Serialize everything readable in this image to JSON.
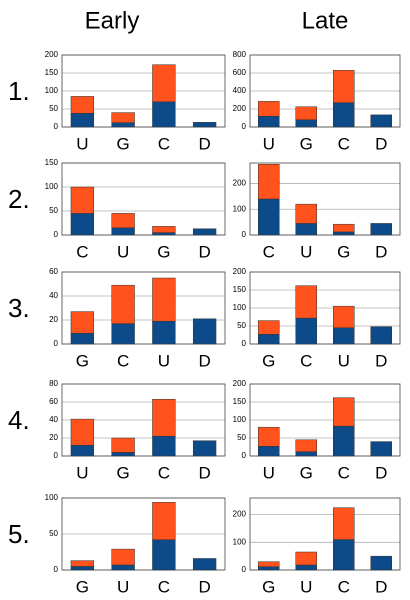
{
  "columns": [
    "Early",
    "Late"
  ],
  "rows": [
    "1.",
    "2.",
    "3.",
    "4.",
    "5."
  ],
  "chart_data": [
    {
      "type": "bar",
      "stacked": true,
      "categories": [
        "U",
        "G",
        "C",
        "D"
      ],
      "ylim": [
        0,
        200
      ],
      "yticks": [
        0,
        50,
        100,
        150,
        200
      ],
      "grid": true,
      "series": [
        {
          "color": "#0d4a8a",
          "values": [
            38,
            12,
            70,
            13
          ]
        },
        {
          "color": "#ff521c",
          "values": [
            47,
            28,
            103,
            0
          ]
        }
      ]
    },
    {
      "type": "bar",
      "stacked": true,
      "categories": [
        "U",
        "G",
        "C",
        "D"
      ],
      "ylim": [
        0,
        800
      ],
      "yticks": [
        0,
        200,
        400,
        600,
        800
      ],
      "grid": true,
      "series": [
        {
          "color": "#0d4a8a",
          "values": [
            120,
            80,
            270,
            135
          ]
        },
        {
          "color": "#ff521c",
          "values": [
            165,
            145,
            360,
            0
          ]
        }
      ]
    },
    {
      "type": "bar",
      "stacked": true,
      "categories": [
        "C",
        "U",
        "G",
        "D"
      ],
      "ylim": [
        0,
        150
      ],
      "yticks": [
        0,
        50,
        100,
        150
      ],
      "grid": true,
      "series": [
        {
          "color": "#0d4a8a",
          "values": [
            45,
            15,
            5,
            13
          ]
        },
        {
          "color": "#ff521c",
          "values": [
            55,
            30,
            13,
            0
          ]
        }
      ]
    },
    {
      "type": "bar",
      "stacked": true,
      "categories": [
        "C",
        "U",
        "G",
        "D"
      ],
      "ylim": [
        0,
        280
      ],
      "yticks": [
        0,
        100,
        200
      ],
      "grid": true,
      "series": [
        {
          "color": "#0d4a8a",
          "values": [
            140,
            45,
            12,
            45
          ]
        },
        {
          "color": "#ff521c",
          "values": [
            135,
            75,
            30,
            0
          ]
        }
      ]
    },
    {
      "type": "bar",
      "stacked": true,
      "categories": [
        "G",
        "C",
        "U",
        "D"
      ],
      "ylim": [
        0,
        60
      ],
      "yticks": [
        0,
        20,
        40,
        60
      ],
      "grid": true,
      "series": [
        {
          "color": "#0d4a8a",
          "values": [
            9,
            17,
            19,
            21
          ]
        },
        {
          "color": "#ff521c",
          "values": [
            18,
            32,
            36,
            0
          ]
        }
      ]
    },
    {
      "type": "bar",
      "stacked": true,
      "categories": [
        "G",
        "C",
        "U",
        "D"
      ],
      "ylim": [
        0,
        200
      ],
      "yticks": [
        0,
        50,
        100,
        150,
        200
      ],
      "grid": true,
      "series": [
        {
          "color": "#0d4a8a",
          "values": [
            27,
            72,
            45,
            48
          ]
        },
        {
          "color": "#ff521c",
          "values": [
            38,
            90,
            60,
            0
          ]
        }
      ]
    },
    {
      "type": "bar",
      "stacked": true,
      "categories": [
        "U",
        "G",
        "C",
        "D"
      ],
      "ylim": [
        0,
        80
      ],
      "yticks": [
        0,
        20,
        40,
        60,
        80
      ],
      "grid": true,
      "series": [
        {
          "color": "#0d4a8a",
          "values": [
            12,
            4,
            22,
            17
          ]
        },
        {
          "color": "#ff521c",
          "values": [
            29,
            16,
            41,
            0
          ]
        }
      ]
    },
    {
      "type": "bar",
      "stacked": true,
      "categories": [
        "U",
        "G",
        "C",
        "D"
      ],
      "ylim": [
        0,
        200
      ],
      "yticks": [
        0,
        50,
        100,
        150,
        200
      ],
      "grid": true,
      "series": [
        {
          "color": "#0d4a8a",
          "values": [
            27,
            12,
            83,
            40
          ]
        },
        {
          "color": "#ff521c",
          "values": [
            53,
            33,
            79,
            0
          ]
        }
      ]
    },
    {
      "type": "bar",
      "stacked": true,
      "categories": [
        "G",
        "U",
        "C",
        "D"
      ],
      "ylim": [
        0,
        100
      ],
      "yticks": [
        0,
        50,
        100
      ],
      "grid": true,
      "series": [
        {
          "color": "#0d4a8a",
          "values": [
            5,
            7,
            42,
            16
          ]
        },
        {
          "color": "#ff521c",
          "values": [
            8,
            22,
            52,
            0
          ]
        }
      ]
    },
    {
      "type": "bar",
      "stacked": true,
      "categories": [
        "G",
        "U",
        "C",
        "D"
      ],
      "ylim": [
        0,
        260
      ],
      "yticks": [
        0,
        100,
        200
      ],
      "grid": true,
      "series": [
        {
          "color": "#0d4a8a",
          "values": [
            12,
            18,
            110,
            50
          ]
        },
        {
          "color": "#ff521c",
          "values": [
            18,
            47,
            115,
            0
          ]
        }
      ]
    }
  ]
}
